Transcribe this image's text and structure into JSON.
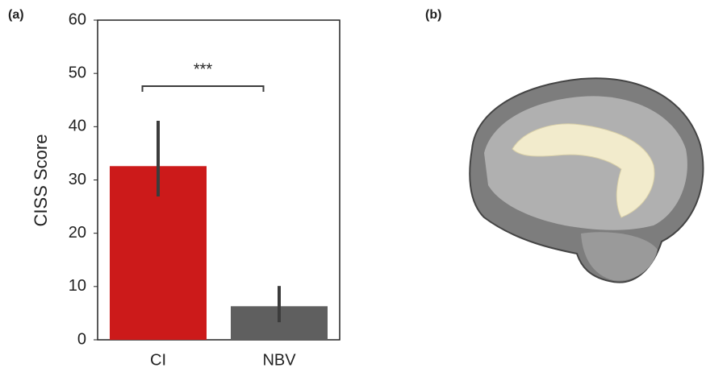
{
  "chart_data": {
    "type": "bar",
    "panel_label": "(a)",
    "ylabel": "CISS Score",
    "categories": [
      "CI",
      "NBV"
    ],
    "values": [
      32.6,
      6.3
    ],
    "colors": [
      "#cc1a1a",
      "#5f5f5f"
    ],
    "error_low": [
      26.9,
      3.3
    ],
    "error_high": [
      41.1,
      10.1
    ],
    "ylim": [
      0,
      60
    ],
    "yticks": [
      0,
      10,
      20,
      30,
      40,
      50,
      60
    ],
    "annotation": "***",
    "grid": false
  },
  "image_panel": {
    "label": "(b)"
  }
}
